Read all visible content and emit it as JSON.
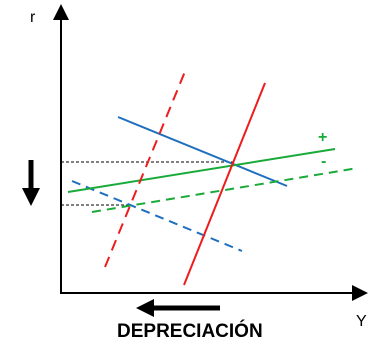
{
  "axes": {
    "y_label": "r",
    "x_label": "Y"
  },
  "curve_signs": {
    "plus": "+",
    "minus": "-"
  },
  "caption": "DEPRECIACIÓN",
  "colors": {
    "axis": "#000000",
    "red": "#ee1c1c",
    "green": "#1aaa3a",
    "blue": "#1f6fbf",
    "guide": "#000000"
  },
  "icons": {
    "down_arrow": "down-arrow-icon",
    "left_arrow": "left-arrow-icon"
  }
}
